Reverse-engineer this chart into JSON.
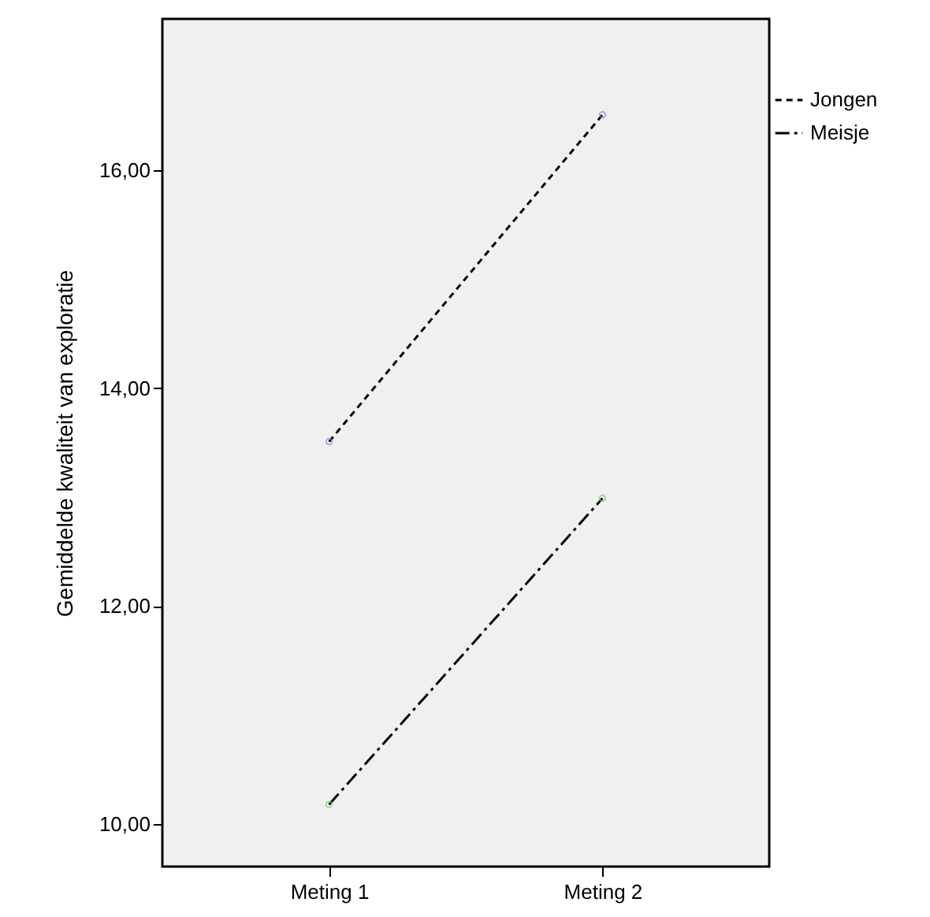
{
  "chart_data": {
    "type": "line",
    "ylabel": "Gemiddelde kwaliteit van exploratie",
    "categories": [
      "Meting 1",
      "Meting 2"
    ],
    "series": [
      {
        "name": "Jongen",
        "color": "#000000",
        "values": [
          13.51,
          16.51
        ],
        "line_style": "dashed"
      },
      {
        "name": "Meisje",
        "color": "#000000",
        "values": [
          10.18,
          12.99
        ],
        "line_style": "dashdot"
      }
    ],
    "ylim": [
      9.61,
      17.39
    ],
    "yticks": [
      {
        "value": 10,
        "label": "10,00"
      },
      {
        "value": 12,
        "label": "12,00"
      },
      {
        "value": 14,
        "label": "14,00"
      },
      {
        "value": 16,
        "label": "16,00"
      }
    ],
    "marker": "circle",
    "legend": "top right",
    "grid": false
  }
}
